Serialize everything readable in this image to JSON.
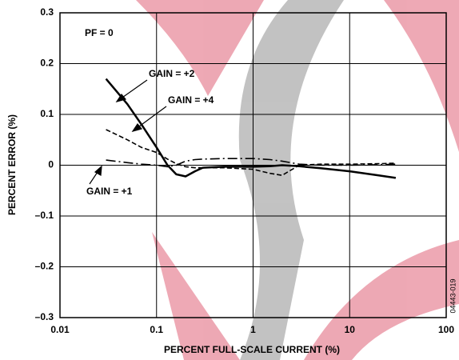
{
  "chart_data": {
    "type": "line",
    "x_label": "PERCENT FULL-SCALE CURRENT (%)",
    "y_label": "PERCENT ERROR (%)",
    "x_scale": "log",
    "grid": true,
    "xlim": [
      0.01,
      100
    ],
    "xticks": [
      0.01,
      0.1,
      1,
      10,
      100
    ],
    "ylim": [
      -0.3,
      0.3
    ],
    "yticks": [
      {
        "value": -0.3,
        "label": "–0.3"
      },
      {
        "value": -0.2,
        "label": "–0.2"
      },
      {
        "value": -0.1,
        "label": "–0.1"
      },
      0,
      0.1,
      0.2,
      0.3
    ],
    "x": [
      0.03,
      0.05,
      0.07,
      0.1,
      0.13,
      0.16,
      0.2,
      0.25,
      0.3,
      0.5,
      1,
      1.5,
      2,
      3,
      5,
      10,
      20,
      30
    ],
    "series": [
      {
        "name": "GAIN = +2",
        "color": "#000000",
        "dash": "solid",
        "values": [
          0.17,
          0.12,
          0.08,
          0.035,
          0.0,
          -0.018,
          -0.022,
          -0.012,
          -0.005,
          -0.003,
          -0.003,
          -0.002,
          0.0,
          -0.002,
          -0.006,
          -0.012,
          -0.02,
          -0.025
        ]
      },
      {
        "name": "GAIN = +4",
        "color": "#000000",
        "dash": "dashed",
        "values": [
          0.07,
          0.05,
          0.035,
          0.025,
          0.012,
          0.003,
          -0.003,
          -0.005,
          -0.005,
          -0.005,
          -0.008,
          -0.016,
          -0.02,
          0.0,
          0.002,
          0.002,
          0.003,
          0.004
        ]
      },
      {
        "name": "GAIN = +1",
        "color": "#000000",
        "dash": "dashdot",
        "values": [
          0.01,
          0.005,
          0.002,
          0.0,
          -0.003,
          0.0,
          0.008,
          0.011,
          0.012,
          0.013,
          0.013,
          0.011,
          0.008,
          0.002,
          0.0,
          0.0,
          0.001,
          0.002
        ]
      }
    ],
    "annotation": "PF = 0",
    "figure_id": "04443-019"
  }
}
